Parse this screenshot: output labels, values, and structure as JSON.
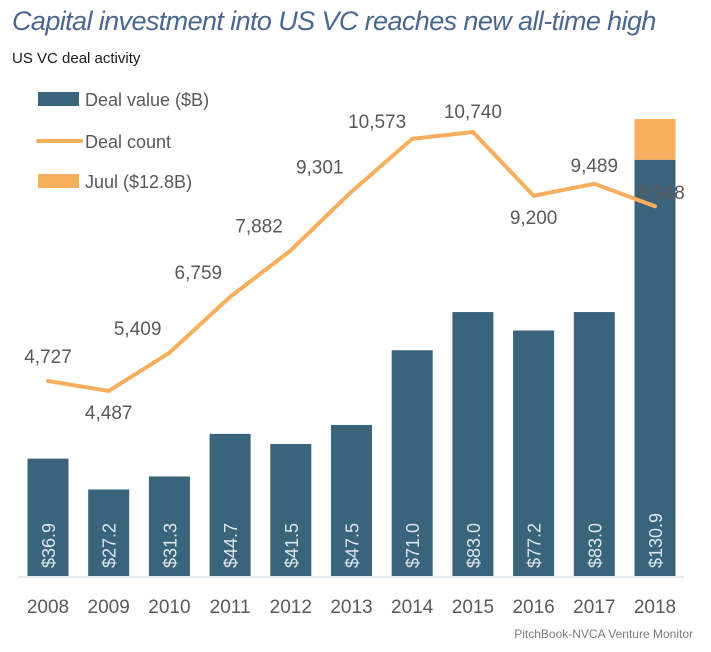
{
  "header": {
    "title": "Capital investment into US VC reaches new all-time high",
    "subtitle": "US VC deal activity"
  },
  "footer": {
    "source": "PitchBook-NVCA Venture Monitor"
  },
  "colors": {
    "deal_value": "#3a637c",
    "deal_count": "#f7ae5d",
    "juul": "#f7ae5d",
    "axis": "#e3e8ec",
    "title": "#4a6790"
  },
  "chart_data": {
    "type": "bar",
    "title": "Capital investment into US VC reaches new all-time high",
    "subtitle": "US VC deal activity",
    "xlabel": "",
    "ylabel": "",
    "categories": [
      "2008",
      "2009",
      "2010",
      "2011",
      "2012",
      "2013",
      "2014",
      "2015",
      "2016",
      "2017",
      "2018"
    ],
    "series": [
      {
        "name": "Deal value ($B)",
        "type": "bar",
        "values": [
          36.9,
          27.2,
          31.3,
          44.7,
          41.5,
          47.5,
          71.0,
          83.0,
          77.2,
          83.0,
          130.9
        ],
        "labels": [
          "$36.9",
          "$27.2",
          "$31.3",
          "$44.7",
          "$41.5",
          "$47.5",
          "$71.0",
          "$83.0",
          "$77.2",
          "$83.0",
          "$130.9"
        ]
      },
      {
        "name": "Juul ($12.8B)",
        "type": "bar-stacked",
        "values": [
          0,
          0,
          0,
          0,
          0,
          0,
          0,
          0,
          0,
          0,
          12.8
        ]
      },
      {
        "name": "Deal count",
        "type": "line",
        "values": [
          4727,
          4487,
          5409,
          6759,
          7882,
          9301,
          10573,
          10740,
          9200,
          9489,
          8948
        ],
        "labels": [
          "4,727",
          "4,487",
          "5,409",
          "6,759",
          "7,882",
          "9,301",
          "10,573",
          "10,740",
          "9,200",
          "9,489",
          "8,948"
        ]
      }
    ],
    "legend": {
      "placement": "top-left",
      "entries": [
        "Deal value ($B)",
        "Deal count",
        "Juul ($12.8B)"
      ]
    },
    "grid": false,
    "y_axis_visible": false
  }
}
